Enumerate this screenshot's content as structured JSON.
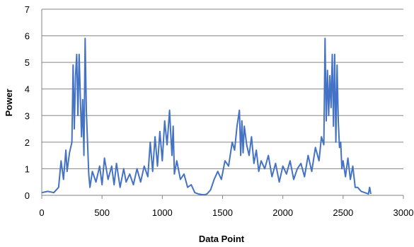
{
  "chart_data": {
    "type": "line",
    "title": "",
    "xlabel": "Data Point",
    "ylabel": "Power",
    "xlim": [
      0,
      3000
    ],
    "ylim": [
      0,
      7
    ],
    "x_ticks": [
      0,
      500,
      1000,
      1500,
      2000,
      2500,
      3000
    ],
    "y_ticks": [
      0,
      1,
      2,
      3,
      4,
      5,
      6,
      7
    ],
    "grid": "horizontal",
    "legend": "none",
    "series": [
      {
        "name": "",
        "color": "#4472C4",
        "x": [
          0,
          50,
          100,
          140,
          160,
          180,
          200,
          210,
          230,
          250,
          260,
          270,
          280,
          290,
          300,
          310,
          320,
          330,
          340,
          350,
          360,
          370,
          380,
          390,
          400,
          420,
          450,
          480,
          500,
          520,
          550,
          580,
          600,
          620,
          650,
          680,
          700,
          730,
          760,
          790,
          820,
          850,
          880,
          900,
          920,
          940,
          960,
          980,
          1000,
          1020,
          1040,
          1060,
          1070,
          1080,
          1090,
          1100,
          1120,
          1150,
          1180,
          1210,
          1240,
          1270,
          1300,
          1330,
          1350,
          1370,
          1400,
          1430,
          1460,
          1490,
          1520,
          1550,
          1580,
          1600,
          1620,
          1640,
          1650,
          1660,
          1670,
          1680,
          1700,
          1720,
          1740,
          1760,
          1780,
          1800,
          1820,
          1850,
          1880,
          1910,
          1940,
          1970,
          2000,
          2030,
          2060,
          2090,
          2120,
          2150,
          2180,
          2210,
          2240,
          2270,
          2300,
          2320,
          2340,
          2350,
          2360,
          2370,
          2380,
          2390,
          2400,
          2410,
          2420,
          2430,
          2440,
          2450,
          2460,
          2470,
          2480,
          2490,
          2500,
          2520,
          2540,
          2560,
          2580,
          2600,
          2620,
          2650,
          2680,
          2710,
          2720,
          2730
        ],
        "values": [
          0.1,
          0.15,
          0.1,
          0.3,
          1.3,
          0.6,
          1.7,
          0.9,
          1.6,
          2.0,
          4.9,
          2.5,
          4.5,
          5.3,
          3.0,
          5.3,
          3.7,
          2.2,
          3.6,
          1.5,
          5.9,
          3.2,
          2.0,
          0.8,
          0.3,
          0.9,
          0.5,
          1.1,
          0.4,
          1.4,
          0.6,
          1.1,
          0.4,
          1.2,
          0.3,
          1.0,
          0.5,
          0.8,
          0.4,
          1.0,
          0.5,
          1.1,
          0.7,
          2.0,
          0.9,
          2.2,
          1.1,
          2.4,
          1.3,
          2.8,
          1.9,
          3.2,
          2.3,
          1.5,
          2.6,
          0.8,
          1.3,
          0.6,
          0.8,
          0.3,
          0.4,
          0.1,
          0.05,
          0.03,
          0.02,
          0.05,
          0.2,
          0.6,
          0.9,
          0.6,
          1.3,
          1.1,
          2.0,
          1.7,
          2.6,
          3.2,
          1.5,
          2.8,
          1.6,
          2.6,
          1.9,
          1.5,
          2.2,
          1.2,
          1.7,
          0.9,
          1.3,
          1.0,
          1.5,
          0.7,
          1.2,
          0.5,
          1.1,
          0.8,
          1.3,
          0.6,
          1.0,
          1.2,
          0.7,
          1.5,
          0.9,
          1.8,
          1.3,
          2.2,
          1.9,
          5.9,
          2.8,
          4.7,
          3.0,
          4.5,
          3.3,
          5.3,
          2.6,
          5.3,
          2.0,
          4.9,
          2.8,
          1.8,
          2.0,
          1.0,
          1.3,
          0.7,
          1.4,
          0.6,
          1.1,
          0.3,
          0.3,
          0.15,
          0.1,
          0.05,
          0.3,
          0.05
        ]
      }
    ]
  }
}
